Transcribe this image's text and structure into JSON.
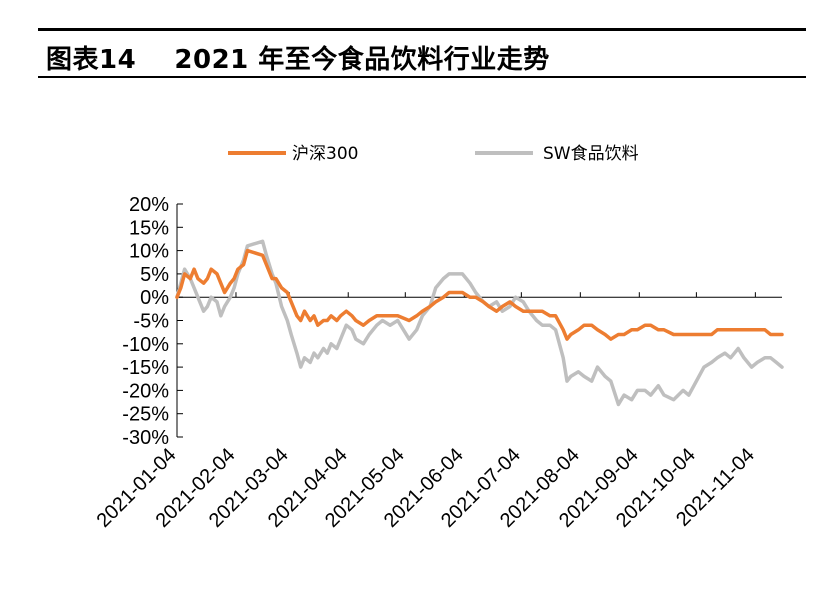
{
  "header": {
    "title": "图表14    2021 年至今食品饮料行业走势"
  },
  "chart_data": {
    "type": "line",
    "ylim": [
      -30,
      20
    ],
    "yticks": [
      "20%",
      "15%",
      "10%",
      "5%",
      "0%",
      "-5%",
      "-10%",
      "-15%",
      "-20%",
      "-25%",
      "-30%"
    ],
    "ytick_values": [
      20,
      15,
      10,
      5,
      0,
      -5,
      -10,
      -15,
      -20,
      -25,
      -30
    ],
    "xlim": [
      "2021-01-04",
      "2021-11-18"
    ],
    "xticks": [
      "2021-01-04",
      "2021-02-04",
      "2021-03-04",
      "2021-04-04",
      "2021-05-04",
      "2021-06-04",
      "2021-07-04",
      "2021-08-04",
      "2021-09-04",
      "2021-10-04",
      "2021-11-04"
    ],
    "legend_position": "top",
    "series": [
      {
        "name": "沪深300",
        "color": "#ED7D31",
        "points": [
          [
            "2021-01-04",
            0
          ],
          [
            "2021-01-06",
            2
          ],
          [
            "2021-01-08",
            5
          ],
          [
            "2021-01-11",
            4
          ],
          [
            "2021-01-13",
            6
          ],
          [
            "2021-01-15",
            4
          ],
          [
            "2021-01-18",
            3
          ],
          [
            "2021-01-20",
            4
          ],
          [
            "2021-01-22",
            6
          ],
          [
            "2021-01-25",
            5
          ],
          [
            "2021-01-27",
            3
          ],
          [
            "2021-01-29",
            1
          ],
          [
            "2021-02-01",
            3
          ],
          [
            "2021-02-03",
            4
          ],
          [
            "2021-02-05",
            6
          ],
          [
            "2021-02-08",
            7
          ],
          [
            "2021-02-10",
            10
          ],
          [
            "2021-02-18",
            9
          ],
          [
            "2021-02-20",
            7
          ],
          [
            "2021-02-23",
            4
          ],
          [
            "2021-02-25",
            4
          ],
          [
            "2021-02-28",
            2
          ],
          [
            "2021-03-03",
            1
          ],
          [
            "2021-03-05",
            -1
          ],
          [
            "2021-03-08",
            -4
          ],
          [
            "2021-03-10",
            -5
          ],
          [
            "2021-03-12",
            -3
          ],
          [
            "2021-03-15",
            -5
          ],
          [
            "2021-03-17",
            -4
          ],
          [
            "2021-03-19",
            -6
          ],
          [
            "2021-03-22",
            -5
          ],
          [
            "2021-03-24",
            -5
          ],
          [
            "2021-03-26",
            -4
          ],
          [
            "2021-03-29",
            -5
          ],
          [
            "2021-03-31",
            -4
          ],
          [
            "2021-04-03",
            -3
          ],
          [
            "2021-04-06",
            -4
          ],
          [
            "2021-04-08",
            -5
          ],
          [
            "2021-04-12",
            -6
          ],
          [
            "2021-04-15",
            -5
          ],
          [
            "2021-04-19",
            -4
          ],
          [
            "2021-04-22",
            -4
          ],
          [
            "2021-04-26",
            -4
          ],
          [
            "2021-04-30",
            -4
          ],
          [
            "2021-05-06",
            -5
          ],
          [
            "2021-05-10",
            -4
          ],
          [
            "2021-05-13",
            -3
          ],
          [
            "2021-05-17",
            -2
          ],
          [
            "2021-05-20",
            -1
          ],
          [
            "2021-05-24",
            0
          ],
          [
            "2021-05-27",
            1
          ],
          [
            "2021-05-31",
            1
          ],
          [
            "2021-06-03",
            1
          ],
          [
            "2021-06-07",
            0
          ],
          [
            "2021-06-10",
            0
          ],
          [
            "2021-06-14",
            -1
          ],
          [
            "2021-06-17",
            -2
          ],
          [
            "2021-06-21",
            -3
          ],
          [
            "2021-06-24",
            -2
          ],
          [
            "2021-06-28",
            -1
          ],
          [
            "2021-07-01",
            -2
          ],
          [
            "2021-07-05",
            -3
          ],
          [
            "2021-07-08",
            -3
          ],
          [
            "2021-07-12",
            -3
          ],
          [
            "2021-07-15",
            -3
          ],
          [
            "2021-07-19",
            -4
          ],
          [
            "2021-07-22",
            -4
          ],
          [
            "2021-07-26",
            -7
          ],
          [
            "2021-07-28",
            -9
          ],
          [
            "2021-07-30",
            -8
          ],
          [
            "2021-08-03",
            -7
          ],
          [
            "2021-08-06",
            -6
          ],
          [
            "2021-08-10",
            -6
          ],
          [
            "2021-08-13",
            -7
          ],
          [
            "2021-08-17",
            -8
          ],
          [
            "2021-08-20",
            -9
          ],
          [
            "2021-08-24",
            -8
          ],
          [
            "2021-08-27",
            -8
          ],
          [
            "2021-08-31",
            -7
          ],
          [
            "2021-09-03",
            -7
          ],
          [
            "2021-09-07",
            -6
          ],
          [
            "2021-09-10",
            -6
          ],
          [
            "2021-09-14",
            -7
          ],
          [
            "2021-09-17",
            -7
          ],
          [
            "2021-09-22",
            -8
          ],
          [
            "2021-09-27",
            -8
          ],
          [
            "2021-09-30",
            -8
          ],
          [
            "2021-10-08",
            -8
          ],
          [
            "2021-10-12",
            -8
          ],
          [
            "2021-10-15",
            -7
          ],
          [
            "2021-10-19",
            -7
          ],
          [
            "2021-10-22",
            -7
          ],
          [
            "2021-10-26",
            -7
          ],
          [
            "2021-10-29",
            -7
          ],
          [
            "2021-11-02",
            -7
          ],
          [
            "2021-11-05",
            -7
          ],
          [
            "2021-11-09",
            -7
          ],
          [
            "2021-11-12",
            -8
          ],
          [
            "2021-11-15",
            -8
          ],
          [
            "2021-11-18",
            -8
          ]
        ]
      },
      {
        "name": "SW食品饮料",
        "color": "#BFBFBF",
        "points": [
          [
            "2021-01-04",
            0
          ],
          [
            "2021-01-06",
            3
          ],
          [
            "2021-01-08",
            6
          ],
          [
            "2021-01-11",
            4
          ],
          [
            "2021-01-13",
            2
          ],
          [
            "2021-01-15",
            0
          ],
          [
            "2021-01-18",
            -3
          ],
          [
            "2021-01-20",
            -2
          ],
          [
            "2021-01-22",
            0
          ],
          [
            "2021-01-25",
            -1
          ],
          [
            "2021-01-27",
            -4
          ],
          [
            "2021-01-29",
            -2
          ],
          [
            "2021-02-01",
            0
          ],
          [
            "2021-02-03",
            2
          ],
          [
            "2021-02-05",
            5
          ],
          [
            "2021-02-08",
            8
          ],
          [
            "2021-02-10",
            11
          ],
          [
            "2021-02-18",
            12
          ],
          [
            "2021-02-20",
            9
          ],
          [
            "2021-02-23",
            5
          ],
          [
            "2021-02-25",
            3
          ],
          [
            "2021-02-28",
            -2
          ],
          [
            "2021-03-03",
            -5
          ],
          [
            "2021-03-05",
            -8
          ],
          [
            "2021-03-08",
            -12
          ],
          [
            "2021-03-10",
            -15
          ],
          [
            "2021-03-12",
            -13
          ],
          [
            "2021-03-15",
            -14
          ],
          [
            "2021-03-17",
            -12
          ],
          [
            "2021-03-19",
            -13
          ],
          [
            "2021-03-22",
            -11
          ],
          [
            "2021-03-24",
            -12
          ],
          [
            "2021-03-26",
            -10
          ],
          [
            "2021-03-29",
            -11
          ],
          [
            "2021-03-31",
            -9
          ],
          [
            "2021-04-03",
            -6
          ],
          [
            "2021-04-06",
            -7
          ],
          [
            "2021-04-08",
            -9
          ],
          [
            "2021-04-12",
            -10
          ],
          [
            "2021-04-15",
            -8
          ],
          [
            "2021-04-19",
            -6
          ],
          [
            "2021-04-22",
            -5
          ],
          [
            "2021-04-26",
            -6
          ],
          [
            "2021-04-30",
            -5
          ],
          [
            "2021-05-06",
            -9
          ],
          [
            "2021-05-10",
            -7
          ],
          [
            "2021-05-13",
            -4
          ],
          [
            "2021-05-17",
            -2
          ],
          [
            "2021-05-20",
            2
          ],
          [
            "2021-05-24",
            4
          ],
          [
            "2021-05-27",
            5
          ],
          [
            "2021-05-31",
            5
          ],
          [
            "2021-06-03",
            5
          ],
          [
            "2021-06-07",
            3
          ],
          [
            "2021-06-10",
            1
          ],
          [
            "2021-06-14",
            -1
          ],
          [
            "2021-06-17",
            -2
          ],
          [
            "2021-06-21",
            -1
          ],
          [
            "2021-06-24",
            -3
          ],
          [
            "2021-06-28",
            -2
          ],
          [
            "2021-07-01",
            0
          ],
          [
            "2021-07-05",
            -1
          ],
          [
            "2021-07-08",
            -3
          ],
          [
            "2021-07-12",
            -5
          ],
          [
            "2021-07-15",
            -6
          ],
          [
            "2021-07-19",
            -6
          ],
          [
            "2021-07-22",
            -7
          ],
          [
            "2021-07-26",
            -13
          ],
          [
            "2021-07-28",
            -18
          ],
          [
            "2021-07-30",
            -17
          ],
          [
            "2021-08-03",
            -16
          ],
          [
            "2021-08-06",
            -17
          ],
          [
            "2021-08-10",
            -18
          ],
          [
            "2021-08-13",
            -15
          ],
          [
            "2021-08-17",
            -17
          ],
          [
            "2021-08-20",
            -18
          ],
          [
            "2021-08-24",
            -23
          ],
          [
            "2021-08-27",
            -21
          ],
          [
            "2021-08-31",
            -22
          ],
          [
            "2021-09-03",
            -20
          ],
          [
            "2021-09-07",
            -20
          ],
          [
            "2021-09-10",
            -21
          ],
          [
            "2021-09-14",
            -19
          ],
          [
            "2021-09-17",
            -21
          ],
          [
            "2021-09-22",
            -22
          ],
          [
            "2021-09-27",
            -20
          ],
          [
            "2021-09-30",
            -21
          ],
          [
            "2021-10-08",
            -15
          ],
          [
            "2021-10-12",
            -14
          ],
          [
            "2021-10-15",
            -13
          ],
          [
            "2021-10-19",
            -12
          ],
          [
            "2021-10-22",
            -13
          ],
          [
            "2021-10-26",
            -11
          ],
          [
            "2021-10-29",
            -13
          ],
          [
            "2021-11-02",
            -15
          ],
          [
            "2021-11-05",
            -14
          ],
          [
            "2021-11-09",
            -13
          ],
          [
            "2021-11-12",
            -13
          ],
          [
            "2021-11-15",
            -14
          ],
          [
            "2021-11-18",
            -15
          ]
        ]
      }
    ]
  }
}
